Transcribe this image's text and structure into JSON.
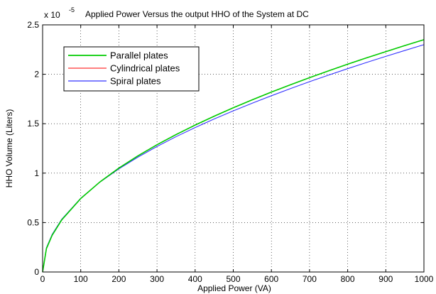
{
  "chart_data": {
    "type": "line",
    "title": "Applied Power Versus the output HHO of the System at DC",
    "xlabel": "Applied Power (VA)",
    "ylabel": "HHO Volume (Liters)",
    "y_multiplier_base": "x 10",
    "y_multiplier_exp": "-5",
    "xlim": [
      0,
      1000
    ],
    "ylim": [
      0,
      2.5
    ],
    "grid": true,
    "legend_position": "top-left",
    "x_ticks": [
      "0",
      "100",
      "200",
      "300",
      "400",
      "500",
      "600",
      "700",
      "800",
      "900",
      "1000"
    ],
    "y_ticks": [
      "0",
      "0.5",
      "1",
      "1.5",
      "2",
      "2.5"
    ],
    "x": [
      0,
      10,
      25,
      50,
      100,
      150,
      200,
      250,
      300,
      350,
      400,
      450,
      500,
      550,
      600,
      650,
      700,
      750,
      800,
      850,
      900,
      950,
      1000
    ],
    "series": [
      {
        "name": "Parallel plates",
        "color": "#00cc00",
        "values": [
          0,
          0.236,
          0.371,
          0.526,
          0.743,
          0.91,
          1.051,
          1.175,
          1.287,
          1.39,
          1.486,
          1.576,
          1.661,
          1.742,
          1.82,
          1.894,
          1.966,
          2.035,
          2.102,
          2.167,
          2.229,
          2.291,
          2.35
        ]
      },
      {
        "name": "Cylindrical plates",
        "color": "#ff3333",
        "values": [
          0,
          0.236,
          0.371,
          0.526,
          0.743,
          0.91,
          1.051,
          1.175,
          1.287,
          1.39,
          1.486,
          1.576,
          1.661,
          1.742,
          1.82,
          1.894,
          1.966,
          2.035,
          2.102,
          2.167,
          2.229,
          2.291,
          2.35
        ]
      },
      {
        "name": "Spiral plates",
        "color": "#3333ff",
        "values": [
          0,
          0.245,
          0.38,
          0.533,
          0.746,
          0.908,
          1.043,
          1.162,
          1.27,
          1.369,
          1.461,
          1.548,
          1.63,
          1.708,
          1.783,
          1.855,
          1.925,
          1.992,
          2.057,
          2.12,
          2.181,
          2.241,
          2.3
        ]
      }
    ]
  }
}
